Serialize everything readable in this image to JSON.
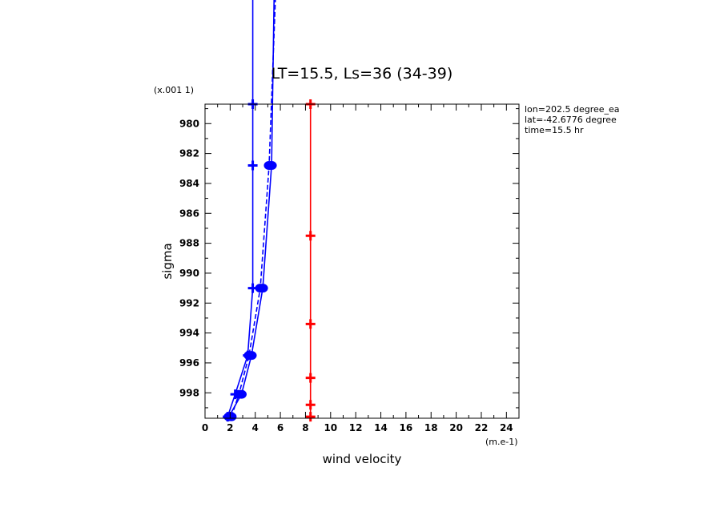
{
  "chart_data": {
    "type": "line",
    "title": "LT=15.5, Ls=36 (34-39)",
    "xlabel": "wind velocity",
    "ylabel": "sigma",
    "x_unit": "(m.e-1)",
    "y_unit": "(x.001 1)",
    "xlim": [
      0,
      25
    ],
    "ylim": [
      999.7,
      978.7
    ],
    "x_ticks": [
      "0",
      "2",
      "4",
      "6",
      "8",
      "10",
      "12",
      "14",
      "16",
      "18",
      "20",
      "22",
      "24"
    ],
    "y_ticks": [
      "980",
      "982",
      "984",
      "986",
      "988",
      "990",
      "992",
      "994",
      "996",
      "998"
    ],
    "info": [
      "lon=202.5 degree_ea",
      "lat=-42.6776 degree",
      "time=15.5 hr"
    ],
    "series": [
      {
        "color": "#0000ff",
        "dash": false,
        "marker": "plus",
        "x": [
          1.8,
          2.4,
          3.4,
          3.8,
          3.8,
          3.8
        ],
        "y": [
          999.6,
          998.1,
          995.5,
          991.0,
          982.8,
          978.7
        ],
        "top_x": 3.8
      },
      {
        "color": "#0000ff",
        "dash": true,
        "marker": "dot",
        "x": [
          2.1,
          2.7,
          3.5,
          4.4,
          5.1
        ],
        "y": [
          999.6,
          998.1,
          995.5,
          991.0,
          982.8
        ],
        "top_x": 5.6
      },
      {
        "color": "#0000ff",
        "dash": false,
        "marker": "dot",
        "x": [
          1.9,
          2.9,
          3.7,
          4.6,
          5.3
        ],
        "y": [
          999.6,
          998.1,
          995.5,
          991.0,
          982.8
        ],
        "top_x": 5.5
      },
      {
        "color": "#ff0000",
        "dash": false,
        "marker": "plus",
        "x": [
          8.4,
          8.4,
          8.4,
          8.4,
          8.4,
          8.4
        ],
        "y": [
          999.6,
          998.8,
          997.0,
          993.4,
          987.5,
          978.7
        ]
      }
    ]
  }
}
